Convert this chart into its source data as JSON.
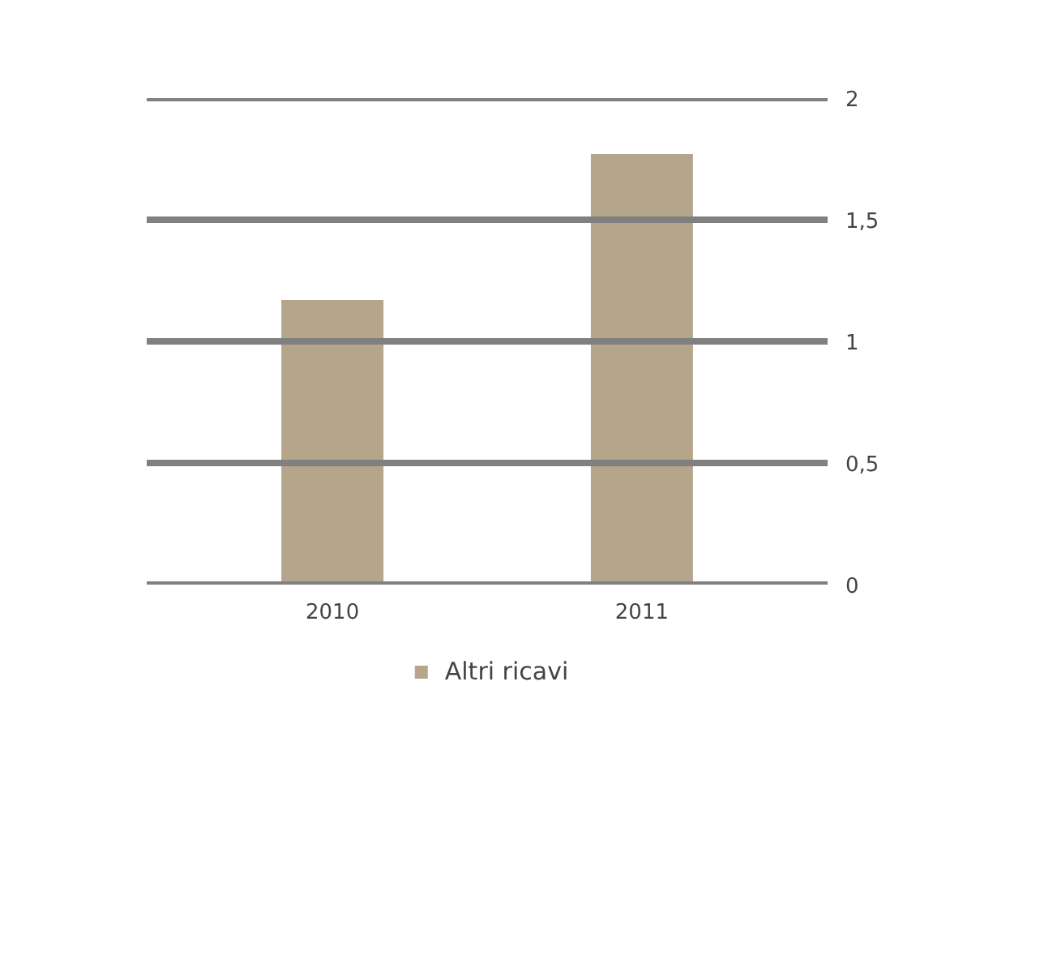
{
  "chart_data": {
    "type": "bar",
    "categories": [
      "2010",
      "2011"
    ],
    "series": [
      {
        "name": "Altri ricavi",
        "color": "#b5a58a",
        "values": [
          1.17,
          1.77
        ]
      }
    ],
    "ylim": [
      0,
      2
    ],
    "yticks": [
      0,
      {
        "value": 0.5,
        "label": "0,5"
      },
      1,
      {
        "value": 1.5,
        "label": "1,5"
      },
      2
    ],
    "grid": "y",
    "legend": "bottom"
  }
}
